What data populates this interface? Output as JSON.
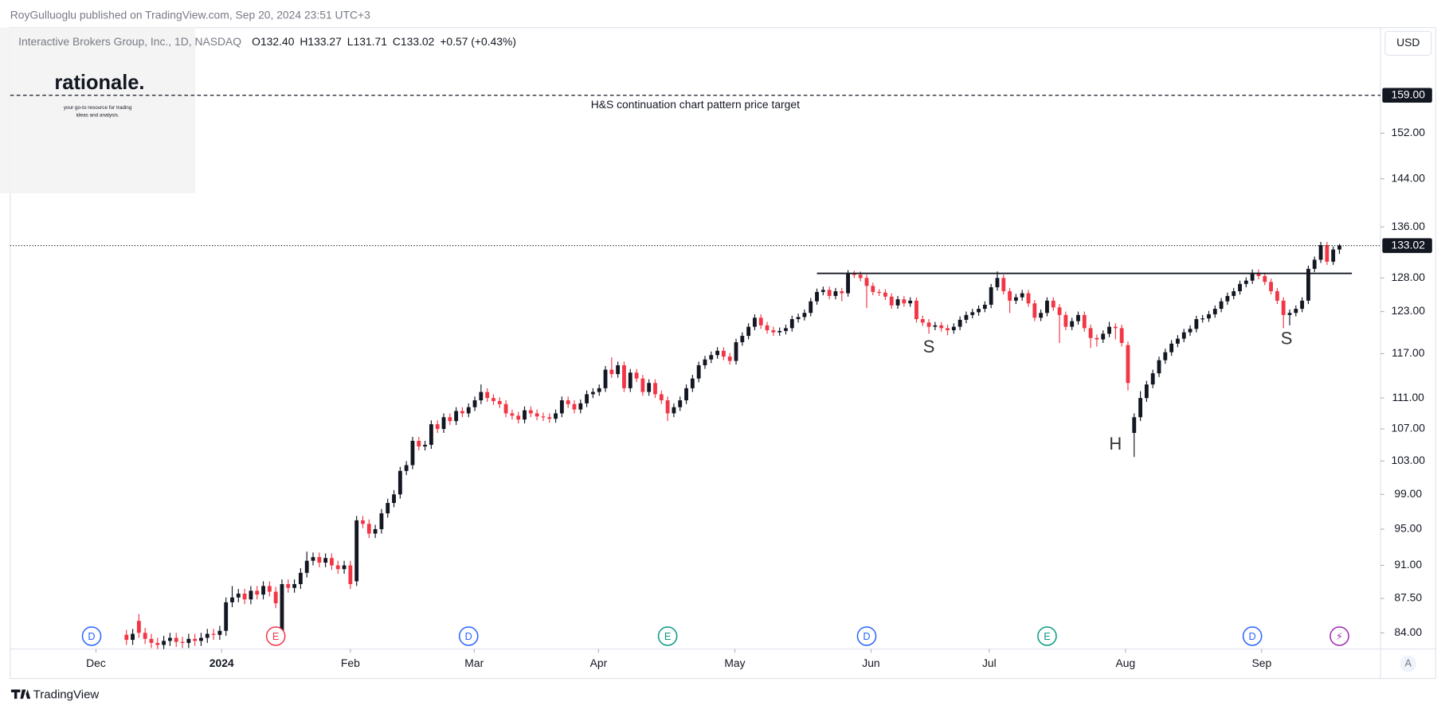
{
  "header": {
    "publisher": "RoyGulluoglu published on TradingView.com, Sep 20, 2024 23:51 UTC+3",
    "brand": "TradingView"
  },
  "chart_data": {
    "type": "candlestick",
    "symbol": "Interactive Brokers Group, Inc., 1D, NASDAQ",
    "ohlc_legend": [
      {
        "label": "O",
        "value": "132.40"
      },
      {
        "label": "H",
        "value": "133.27"
      },
      {
        "label": "L",
        "value": "131.71"
      },
      {
        "label": "C",
        "value": "133.02"
      }
    ],
    "change": "+0.57 (+0.43%)",
    "currency": "USD",
    "watermark": {
      "title": "rationale.",
      "tagline": [
        "your go-to resource for trading",
        "ideas and analysis."
      ]
    },
    "open": [
      83.8,
      83.3,
      85.2,
      84.0,
      83.4,
      83.0,
      82.8,
      83.2,
      83.5,
      83.1,
      83.0,
      83.4,
      83.2,
      83.5,
      83.9,
      83.8,
      84.2,
      87.1,
      87.6,
      88.0,
      87.4,
      88.3,
      87.9,
      88.8,
      88.2,
      84.0,
      89.0,
      88.6,
      89.0,
      90.2,
      91.5,
      91.9,
      91.3,
      91.8,
      91.0,
      90.6,
      91.0,
      89.3,
      96.0,
      95.6,
      94.5,
      95.0,
      96.8,
      98.0,
      99.0,
      101.8,
      102.5,
      105.5,
      104.8,
      105.0,
      107.6,
      107.0,
      108.5,
      108.0,
      109.3,
      109.0,
      109.8,
      110.7,
      111.8,
      111.0,
      110.6,
      110.2,
      109.0,
      108.7,
      108.2,
      109.4,
      109.0,
      108.6,
      108.5,
      108.3,
      109.0,
      110.7,
      110.2,
      109.5,
      110.3,
      111.5,
      111.8,
      112.3,
      114.8,
      114.2,
      115.4,
      112.3,
      114.4,
      113.6,
      111.8,
      113.0,
      111.5,
      110.7,
      109.0,
      109.8,
      110.7,
      112.3,
      113.6,
      115.4,
      116.2,
      116.8,
      117.4,
      116.6,
      116.0,
      118.6,
      119.5,
      120.8,
      122.1,
      121.0,
      120.3,
      120.0,
      120.2,
      120.6,
      121.9,
      122.2,
      122.8,
      124.5,
      125.9,
      126.2,
      125.3,
      126.0,
      125.7,
      128.6,
      128.5,
      128.0,
      126.8,
      125.9,
      125.8,
      125.2,
      123.9,
      124.8,
      124.2,
      124.6,
      121.9,
      121.4,
      120.8,
      121.0,
      120.6,
      120.3,
      120.8,
      121.8,
      122.5,
      122.9,
      123.4,
      124.0,
      126.6,
      128.0,
      126.0,
      124.6,
      125.1,
      125.7,
      124.2,
      122.1,
      122.8,
      124.6,
      123.6,
      122.5,
      120.8,
      121.6,
      122.5,
      120.6,
      119.2,
      119.0,
      119.8,
      120.8,
      120.6,
      118.2,
      106.5,
      108.5,
      111.0,
      112.8,
      114.3,
      116.1,
      117.2,
      118.4,
      119.1,
      120.0,
      120.5,
      121.9,
      122.0,
      122.6,
      123.4,
      124.5,
      125.3,
      126.0,
      127.1,
      127.6,
      128.8,
      128.3,
      127.4,
      126.0,
      124.6,
      122.5,
      122.8,
      123.4,
      124.6,
      129.4,
      130.8,
      133.1,
      130.5,
      132.4
    ],
    "high": [
      84.3,
      84.4,
      85.9,
      84.5,
      83.9,
      83.5,
      83.7,
      84.0,
      84.0,
      83.6,
      83.9,
      83.9,
      84.0,
      84.4,
      84.4,
      84.7,
      87.6,
      88.8,
      88.5,
      88.5,
      88.8,
      88.8,
      89.3,
      89.3,
      88.7,
      89.5,
      89.5,
      89.5,
      90.7,
      92.5,
      92.4,
      92.4,
      92.3,
      92.3,
      91.5,
      91.5,
      91.5,
      96.5,
      96.5,
      96.1,
      95.5,
      97.3,
      98.5,
      99.5,
      102.3,
      103.0,
      106.0,
      106.0,
      105.5,
      108.1,
      108.1,
      109.0,
      109.0,
      109.8,
      109.8,
      110.3,
      111.2,
      112.8,
      112.3,
      111.5,
      111.1,
      110.7,
      109.5,
      109.2,
      109.9,
      109.9,
      109.5,
      109.1,
      109.0,
      109.5,
      111.2,
      111.2,
      110.7,
      110.8,
      112.0,
      112.3,
      112.8,
      115.3,
      116.5,
      115.9,
      115.9,
      114.9,
      114.9,
      114.1,
      113.5,
      113.5,
      112.0,
      111.2,
      110.3,
      111.2,
      112.8,
      114.1,
      115.9,
      116.7,
      117.3,
      117.9,
      117.9,
      117.1,
      119.1,
      120.0,
      121.3,
      122.6,
      122.6,
      121.5,
      120.8,
      120.7,
      121.1,
      122.4,
      122.7,
      123.3,
      125.0,
      126.4,
      126.7,
      126.7,
      126.5,
      126.5,
      129.2,
      129.1,
      129.0,
      128.5,
      127.3,
      126.3,
      126.3,
      125.7,
      125.3,
      125.3,
      125.1,
      125.1,
      122.4,
      121.9,
      121.5,
      121.5,
      121.1,
      121.3,
      122.3,
      123.0,
      123.4,
      123.9,
      124.5,
      127.1,
      129.0,
      128.5,
      126.5,
      125.6,
      126.2,
      126.2,
      124.7,
      123.3,
      125.1,
      125.1,
      124.1,
      123.0,
      122.1,
      123.0,
      123.0,
      121.1,
      119.7,
      120.3,
      121.5,
      121.3,
      121.1,
      118.7,
      109.0,
      111.9,
      113.3,
      114.8,
      116.6,
      117.7,
      118.9,
      119.6,
      120.5,
      121.0,
      122.4,
      122.5,
      123.1,
      123.9,
      125.0,
      125.8,
      126.5,
      127.6,
      128.1,
      129.3,
      129.3,
      128.8,
      127.9,
      126.5,
      125.1,
      123.3,
      123.9,
      125.1,
      129.9,
      131.3,
      133.6,
      133.6,
      132.9,
      133.27
    ],
    "low": [
      82.8,
      82.8,
      83.5,
      82.9,
      82.5,
      82.3,
      82.3,
      82.7,
      82.6,
      82.5,
      82.5,
      82.7,
      82.7,
      83.0,
      83.3,
      83.3,
      83.7,
      86.6,
      87.1,
      86.9,
      86.9,
      87.4,
      87.4,
      87.7,
      86.5,
      83.0,
      88.1,
      88.1,
      88.5,
      89.7,
      91.0,
      90.8,
      90.8,
      90.5,
      90.1,
      90.1,
      88.5,
      88.8,
      95.1,
      94.0,
      94.0,
      94.5,
      96.3,
      97.5,
      98.5,
      101.3,
      102.0,
      104.3,
      104.3,
      104.5,
      106.5,
      106.5,
      107.5,
      107.5,
      108.5,
      108.5,
      109.3,
      110.2,
      110.5,
      110.1,
      109.7,
      108.5,
      108.2,
      107.7,
      107.7,
      108.5,
      108.1,
      108.0,
      107.8,
      107.8,
      108.5,
      109.7,
      109.0,
      109.0,
      109.8,
      111.0,
      111.3,
      111.8,
      113.7,
      113.7,
      111.8,
      111.8,
      113.1,
      111.3,
      111.3,
      111.0,
      110.2,
      108.0,
      108.5,
      109.3,
      110.2,
      111.8,
      113.1,
      114.9,
      115.7,
      116.3,
      116.1,
      115.5,
      115.5,
      118.1,
      119.0,
      120.3,
      120.5,
      119.8,
      119.5,
      119.5,
      119.7,
      120.1,
      121.4,
      121.7,
      122.3,
      124.0,
      125.4,
      124.8,
      124.8,
      124.5,
      125.2,
      128.0,
      127.5,
      123.5,
      125.4,
      125.3,
      124.7,
      123.4,
      123.4,
      123.7,
      123.7,
      121.4,
      120.9,
      119.8,
      120.3,
      120.1,
      119.6,
      119.8,
      120.3,
      121.3,
      122.0,
      122.4,
      122.9,
      123.5,
      126.1,
      125.5,
      122.8,
      124.1,
      124.6,
      123.7,
      121.6,
      121.6,
      122.3,
      123.1,
      118.5,
      120.3,
      120.3,
      121.1,
      120.1,
      117.8,
      118.0,
      118.5,
      119.3,
      119.0,
      118.0,
      112.0,
      103.5,
      108.0,
      110.5,
      112.3,
      113.8,
      115.6,
      116.7,
      117.9,
      118.6,
      119.5,
      120.0,
      121.4,
      121.5,
      122.1,
      122.9,
      124.0,
      124.8,
      125.5,
      126.6,
      127.1,
      127.8,
      126.9,
      125.5,
      124.1,
      120.6,
      121.0,
      122.3,
      122.9,
      124.1,
      128.9,
      130.3,
      130.0,
      130.0,
      131.71
    ],
    "close": [
      83.3,
      83.9,
      84.0,
      83.4,
      83.0,
      82.8,
      83.2,
      83.5,
      83.1,
      83.0,
      83.4,
      83.2,
      83.5,
      83.9,
      83.8,
      84.2,
      87.1,
      87.6,
      88.0,
      87.4,
      88.3,
      87.9,
      88.8,
      88.2,
      87.0,
      89.0,
      88.6,
      89.0,
      90.2,
      91.5,
      91.9,
      91.3,
      91.8,
      91.0,
      90.6,
      91.0,
      89.0,
      96.0,
      95.6,
      94.5,
      95.0,
      96.8,
      98.0,
      99.0,
      101.8,
      102.5,
      105.5,
      104.8,
      105.0,
      107.6,
      107.0,
      108.5,
      108.0,
      109.3,
      109.0,
      109.8,
      110.7,
      111.8,
      111.0,
      110.6,
      110.2,
      109.0,
      108.7,
      108.2,
      109.4,
      109.0,
      108.6,
      108.5,
      108.3,
      109.0,
      110.7,
      110.2,
      109.5,
      110.3,
      111.5,
      111.8,
      112.3,
      114.8,
      114.2,
      115.4,
      112.3,
      114.4,
      113.6,
      111.8,
      113.0,
      111.5,
      110.7,
      109.0,
      109.8,
      110.7,
      112.3,
      113.6,
      115.4,
      116.2,
      116.8,
      117.4,
      116.6,
      116.0,
      118.6,
      119.5,
      120.8,
      122.1,
      121.0,
      120.3,
      120.0,
      120.2,
      120.6,
      121.9,
      122.2,
      122.8,
      124.5,
      125.9,
      126.2,
      125.3,
      126.0,
      125.7,
      128.6,
      128.5,
      128.0,
      126.8,
      125.9,
      125.8,
      125.2,
      123.9,
      124.8,
      124.2,
      124.6,
      121.9,
      121.4,
      120.8,
      121.0,
      120.6,
      120.3,
      120.8,
      121.8,
      122.5,
      122.9,
      123.4,
      124.0,
      126.6,
      128.0,
      126.0,
      124.6,
      125.1,
      125.7,
      124.2,
      122.1,
      122.8,
      124.6,
      123.6,
      122.5,
      120.8,
      121.6,
      122.5,
      120.6,
      119.2,
      119.0,
      119.8,
      120.8,
      120.6,
      118.5,
      113.0,
      108.5,
      111.0,
      112.8,
      114.3,
      116.1,
      117.2,
      118.4,
      119.1,
      120.0,
      120.5,
      121.9,
      122.0,
      122.6,
      123.4,
      124.5,
      125.3,
      126.0,
      127.1,
      127.6,
      128.8,
      128.3,
      127.4,
      126.0,
      124.6,
      122.5,
      122.8,
      123.4,
      124.6,
      129.4,
      130.8,
      133.1,
      130.5,
      132.4,
      133.02
    ],
    "up_color": "#131722",
    "down_color": "#f23645",
    "log_scale": true,
    "ylim": [
      82.4,
      172.3
    ],
    "yticks": [
      {
        "value": 84,
        "label": "84.00"
      },
      {
        "value": 87.5,
        "label": "87.50"
      },
      {
        "value": 91,
        "label": "91.00"
      },
      {
        "value": 95,
        "label": "95.00"
      },
      {
        "value": 99,
        "label": "99.00"
      },
      {
        "value": 103,
        "label": "103.00"
      },
      {
        "value": 107,
        "label": "107.00"
      },
      {
        "value": 111,
        "label": "111.00"
      },
      {
        "value": 117,
        "label": "117.00"
      },
      {
        "value": 123,
        "label": "123.00"
      },
      {
        "value": 128,
        "label": "128.00"
      },
      {
        "value": 136,
        "label": "136.00"
      },
      {
        "value": 144,
        "label": "144.00"
      },
      {
        "value": 152,
        "label": "152.00"
      }
    ],
    "xlim": [
      -18.7,
      201.6
    ],
    "xticks": [
      {
        "value": -4.9,
        "label": "Dec"
      },
      {
        "value": 15.3,
        "label": "2024",
        "bold": true
      },
      {
        "value": 36,
        "label": "Feb"
      },
      {
        "value": 55.9,
        "label": "Mar"
      },
      {
        "value": 75.9,
        "label": "Apr"
      },
      {
        "value": 97.8,
        "label": "May"
      },
      {
        "value": 119.7,
        "label": "Jun"
      },
      {
        "value": 138.7,
        "label": "Jul"
      },
      {
        "value": 160.6,
        "label": "Aug"
      },
      {
        "value": 182.5,
        "label": "Sep"
      }
    ],
    "last_price": {
      "value": 133.02,
      "label": "133.02"
    },
    "target": {
      "value": 159,
      "label": "159.00",
      "annotation": "H&S continuation chart pattern price target"
    },
    "neckline": {
      "value": 128.7,
      "x": [
        111,
        197
      ]
    },
    "pattern_labels": [
      {
        "text": "S",
        "x": 129,
        "y": 117.8
      },
      {
        "text": "H",
        "x": 159,
        "y": 105
      },
      {
        "text": "S",
        "x": 186.5,
        "y": 119
      }
    ],
    "events": [
      {
        "label": "D",
        "x": -5.6,
        "color": "#2962ff"
      },
      {
        "label": "E",
        "x": 24,
        "color": "#f23645"
      },
      {
        "label": "D",
        "x": 55,
        "color": "#2962ff"
      },
      {
        "label": "E",
        "x": 87,
        "color": "#089981"
      },
      {
        "label": "D",
        "x": 119,
        "color": "#2962ff"
      },
      {
        "label": "E",
        "x": 148,
        "color": "#089981"
      },
      {
        "label": "D",
        "x": 181,
        "color": "#2962ff"
      },
      {
        "label": "⚡",
        "x": 195,
        "color": "#9c27b0"
      }
    ],
    "scale_button": "A"
  }
}
